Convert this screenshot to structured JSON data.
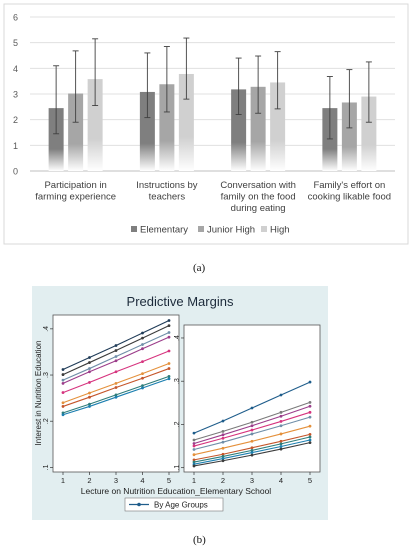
{
  "colors": {
    "elementary": "#7f7f7f",
    "junior_high": "#a6a6a6",
    "high": "#d0d0d0",
    "panel_b_bg": "#e2eef0",
    "lines_left": [
      "#1f3b57",
      "#3c3c3c",
      "#6f8ea8",
      "#9b3d8a",
      "#d6337e",
      "#e4903b",
      "#c4552a",
      "#2e7d7a",
      "#1c7fb0"
    ],
    "lines_right": [
      "#1f5d8b",
      "#7a7a7a",
      "#9b3d8a",
      "#d6337e",
      "#6f8ea8",
      "#e4903b",
      "#c4552a",
      "#2e7d7a",
      "#1c7fb0",
      "#3c3c3c"
    ]
  },
  "captions": {
    "a": "(a)",
    "b": "(b)"
  },
  "chart_data": [
    {
      "type": "bar",
      "title": "",
      "categories": [
        [
          "Participation in",
          "farming experience"
        ],
        [
          "Instructions by",
          "teachers"
        ],
        [
          "Conversation with",
          "family on the food",
          "during eating"
        ],
        [
          "Family's effort on",
          "cooking likable food"
        ]
      ],
      "series": [
        {
          "name": "Elementary",
          "values": [
            2.45,
            3.08,
            3.18,
            2.45
          ],
          "err_low": [
            1.45,
            2.08,
            2.2,
            1.25
          ],
          "err_high": [
            4.1,
            4.6,
            4.4,
            3.68
          ]
        },
        {
          "name": "Junior High",
          "values": [
            3.02,
            3.38,
            3.28,
            2.67
          ],
          "err_low": [
            1.9,
            2.3,
            2.25,
            1.68
          ],
          "err_high": [
            4.68,
            4.85,
            4.48,
            3.95
          ]
        },
        {
          "name": "High",
          "values": [
            3.58,
            3.78,
            3.45,
            2.9
          ],
          "err_low": [
            2.55,
            2.8,
            2.42,
            1.9
          ],
          "err_high": [
            5.15,
            5.18,
            4.65,
            4.25
          ]
        }
      ],
      "ylim": [
        0,
        6
      ],
      "yticks": [
        "0",
        "1",
        "2",
        "3",
        "4",
        "5",
        "6"
      ],
      "grid": true,
      "legend": "bottom"
    },
    {
      "type": "line",
      "title": "Predictive Margins",
      "xlabel": "Lecture on Nutrition Education_Elementary School",
      "ylabel": "Interest in Nutrition Education",
      "x": [
        1,
        2,
        3,
        4,
        5
      ],
      "xticks": [
        "1",
        "2",
        "3",
        "4",
        "5"
      ],
      "yticks": [
        ".1",
        ".2",
        ".3",
        ".4"
      ],
      "ylim": [
        0.09,
        0.43
      ],
      "legend": "bottom",
      "legend_label": "By Age Groups",
      "panels": [
        {
          "series": [
            [
              0.312,
              0.338,
              0.364,
              0.391,
              0.418
            ],
            [
              0.301,
              0.327,
              0.353,
              0.38,
              0.407
            ],
            [
              0.289,
              0.314,
              0.34,
              0.366,
              0.392
            ],
            [
              0.282,
              0.307,
              0.331,
              0.357,
              0.382
            ],
            [
              0.262,
              0.284,
              0.307,
              0.329,
              0.352
            ],
            [
              0.24,
              0.261,
              0.282,
              0.303,
              0.325
            ],
            [
              0.232,
              0.252,
              0.273,
              0.293,
              0.314
            ],
            [
              0.218,
              0.237,
              0.257,
              0.277,
              0.297
            ],
            [
              0.214,
              0.232,
              0.252,
              0.272,
              0.292
            ]
          ]
        },
        {
          "series": [
            [
              0.18,
              0.208,
              0.238,
              0.268,
              0.298
            ],
            [
              0.164,
              0.184,
              0.205,
              0.228,
              0.251
            ],
            [
              0.156,
              0.176,
              0.197,
              0.219,
              0.242
            ],
            [
              0.15,
              0.168,
              0.187,
              0.207,
              0.228
            ],
            [
              0.142,
              0.159,
              0.178,
              0.197,
              0.217
            ],
            [
              0.13,
              0.145,
              0.161,
              0.178,
              0.196
            ],
            [
              0.118,
              0.131,
              0.146,
              0.161,
              0.177
            ],
            [
              0.113,
              0.126,
              0.14,
              0.155,
              0.171
            ],
            [
              0.108,
              0.121,
              0.135,
              0.149,
              0.164
            ],
            [
              0.104,
              0.116,
              0.129,
              0.143,
              0.158
            ]
          ]
        }
      ]
    }
  ]
}
